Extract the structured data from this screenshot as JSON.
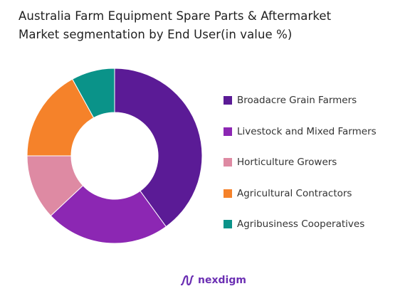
{
  "title_lines": [
    "Australia Farm Equipment Spare Parts & Aftermarket",
    "Market segmentation by End User(in value %)"
  ],
  "brand": {
    "name": "nexdigm",
    "logo_icon": "nexdigm-logo-icon"
  },
  "chart_data": {
    "type": "pie",
    "variant": "donut",
    "title": "Australia Farm Equipment Spare Parts & Aftermarket Market segmentation by End User(in value %)",
    "unit": "%",
    "legend_position": "right",
    "series": [
      {
        "name": "Broadacre Grain Farmers",
        "value": 40,
        "color": "#5b1b96"
      },
      {
        "name": "Livestock and Mixed Farmers",
        "value": 23,
        "color": "#8c27b3"
      },
      {
        "name": "Horticulture Growers",
        "value": 12,
        "color": "#de8aa3"
      },
      {
        "name": "Agricultural Contractors",
        "value": 17,
        "color": "#f5822a"
      },
      {
        "name": "Agribusiness Cooperatives",
        "value": 8,
        "color": "#0a9389"
      }
    ]
  }
}
